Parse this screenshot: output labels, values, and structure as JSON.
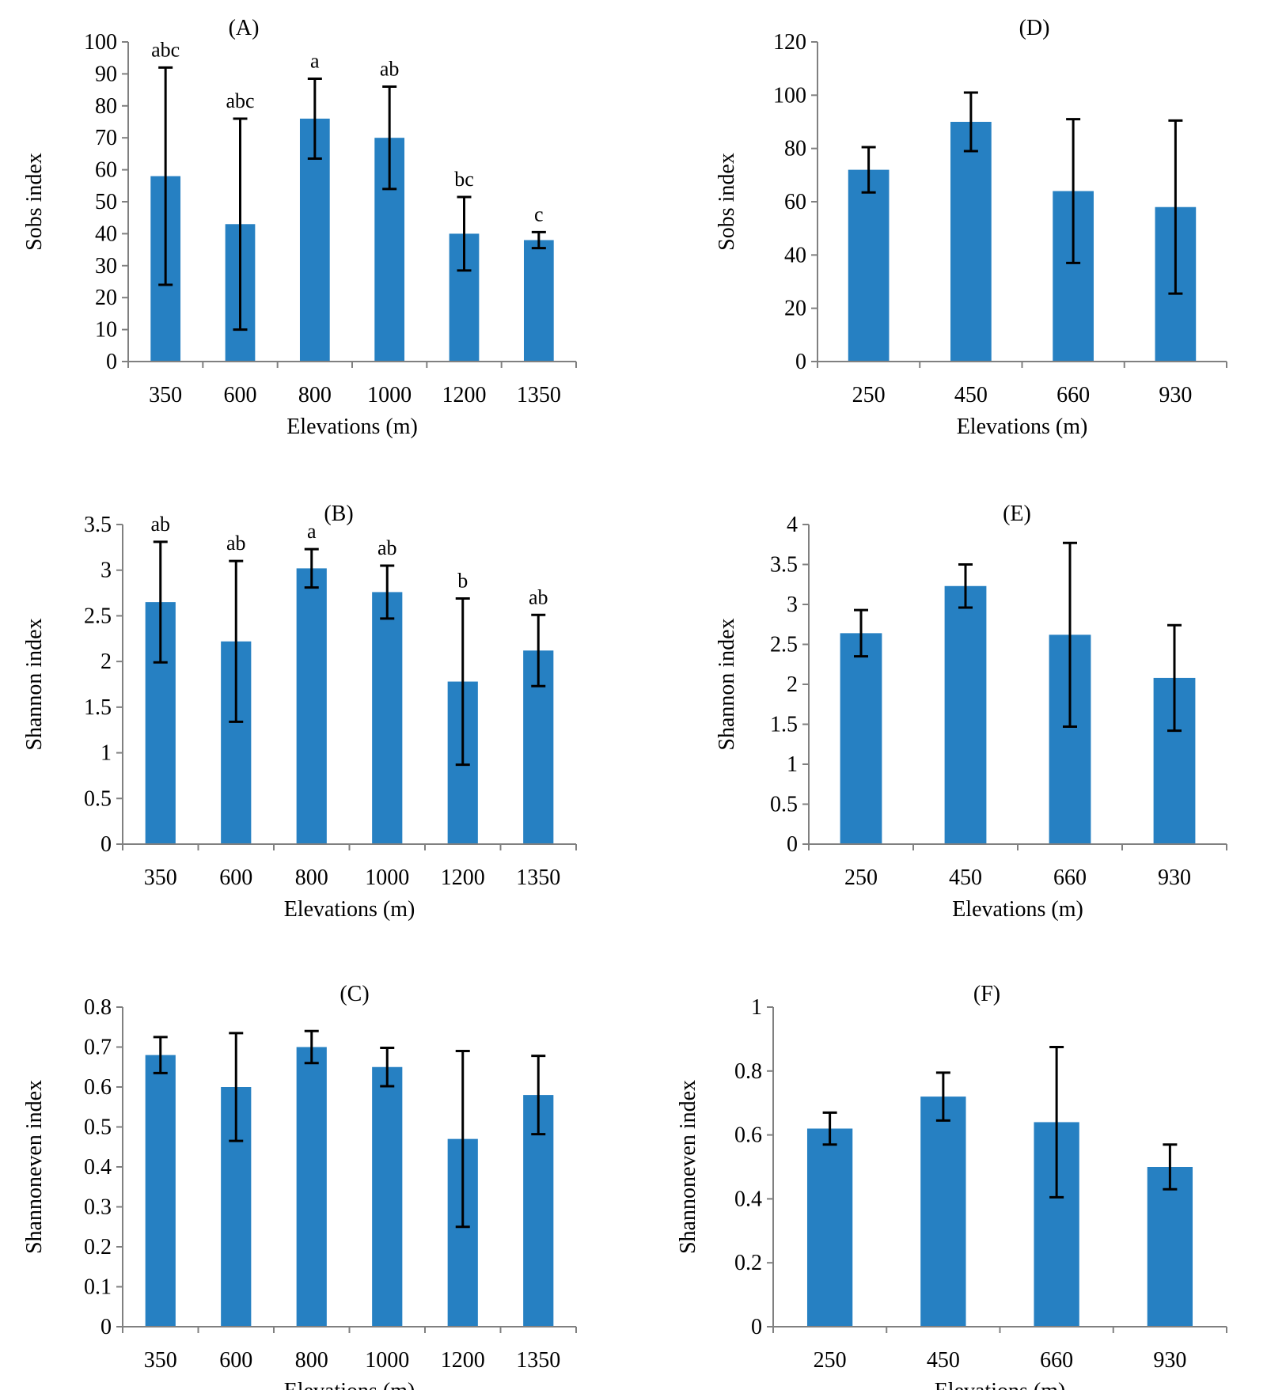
{
  "colors": {
    "bar": "#2680C2",
    "axis": "#808080",
    "errorbar": "#000000",
    "text": "#000000"
  },
  "chart_data": [
    {
      "panel": "(A)",
      "type": "bar",
      "categories": [
        "350",
        "600",
        "800",
        "1000",
        "1200",
        "1350"
      ],
      "values": [
        58,
        43,
        76,
        70,
        40,
        38
      ],
      "errors": [
        34,
        33,
        12.5,
        16,
        11.5,
        2.5
      ],
      "significance": [
        "abc",
        "abc",
        "a",
        "ab",
        "bc",
        "c"
      ],
      "xlabel": "Elevations (m)",
      "ylabel": "Sobs index",
      "ylim": [
        0,
        100
      ],
      "yticks": [
        0,
        10,
        20,
        30,
        40,
        50,
        60,
        70,
        80,
        90,
        100
      ],
      "ytick_labels": [
        "0",
        "10",
        "20",
        "30",
        "40",
        "50",
        "60",
        "70",
        "80",
        "90",
        "100"
      ]
    },
    {
      "panel": "(B)",
      "type": "bar",
      "categories": [
        "350",
        "600",
        "800",
        "1000",
        "1200",
        "1350"
      ],
      "values": [
        2.65,
        2.22,
        3.02,
        2.76,
        1.78,
        2.12
      ],
      "errors": [
        0.66,
        0.88,
        0.21,
        0.29,
        0.91,
        0.39
      ],
      "significance": [
        "ab",
        "ab",
        "a",
        "ab",
        "b",
        "ab"
      ],
      "xlabel": "Elevations (m)",
      "ylabel": "Shannon index",
      "ylim": [
        0,
        3.5
      ],
      "yticks": [
        0,
        0.5,
        1,
        1.5,
        2,
        2.5,
        3,
        3.5
      ],
      "ytick_labels": [
        "0",
        "0.5",
        "1",
        "1.5",
        "2",
        "2.5",
        "3",
        "3.5"
      ]
    },
    {
      "panel": "(C)",
      "type": "bar",
      "categories": [
        "350",
        "600",
        "800",
        "1000",
        "1200",
        "1350"
      ],
      "values": [
        0.68,
        0.6,
        0.7,
        0.65,
        0.47,
        0.58
      ],
      "errors": [
        0.045,
        0.135,
        0.04,
        0.048,
        0.22,
        0.098
      ],
      "xlabel": "Elevations (m)",
      "ylabel": "Shannoneven index",
      "ylim": [
        0,
        0.8
      ],
      "yticks": [
        0,
        0.1,
        0.2,
        0.3,
        0.4,
        0.5,
        0.6,
        0.7,
        0.8
      ],
      "ytick_labels": [
        "0",
        "0.1",
        "0.2",
        "0.3",
        "0.4",
        "0.5",
        "0.6",
        "0.7",
        "0.8"
      ]
    },
    {
      "panel": "(D)",
      "type": "bar",
      "categories": [
        "250",
        "450",
        "660",
        "930"
      ],
      "values": [
        72,
        90,
        64,
        58
      ],
      "errors": [
        8.5,
        11,
        27,
        32.5
      ],
      "xlabel": "Elevations (m)",
      "ylabel": "Sobs index",
      "ylim": [
        0,
        120
      ],
      "yticks": [
        0,
        20,
        40,
        60,
        80,
        100,
        120
      ],
      "ytick_labels": [
        "0",
        "20",
        "40",
        "60",
        "80",
        "100",
        "120"
      ]
    },
    {
      "panel": "(E)",
      "type": "bar",
      "categories": [
        "250",
        "450",
        "660",
        "930"
      ],
      "values": [
        2.64,
        3.23,
        2.62,
        2.08
      ],
      "errors": [
        0.29,
        0.27,
        1.15,
        0.66
      ],
      "xlabel": "Elevations (m)",
      "ylabel": "Shannon index",
      "ylim": [
        0,
        4
      ],
      "yticks": [
        0,
        0.5,
        1,
        1.5,
        2,
        2.5,
        3,
        3.5,
        4
      ],
      "ytick_labels": [
        "0",
        "0.5",
        "1",
        "1.5",
        "2",
        "2.5",
        "3",
        "3.5",
        "4"
      ]
    },
    {
      "panel": "(F)",
      "type": "bar",
      "categories": [
        "250",
        "450",
        "660",
        "930"
      ],
      "values": [
        0.62,
        0.72,
        0.64,
        0.5
      ],
      "errors": [
        0.05,
        0.075,
        0.235,
        0.07
      ],
      "xlabel": "Elevations (m)",
      "ylabel": "Shannoneven index",
      "ylim": [
        0,
        1
      ],
      "yticks": [
        0,
        0.2,
        0.4,
        0.6,
        0.8,
        1
      ],
      "ytick_labels": [
        "0",
        "0.2",
        "0.4",
        "0.6",
        "0.8",
        "1"
      ]
    }
  ]
}
